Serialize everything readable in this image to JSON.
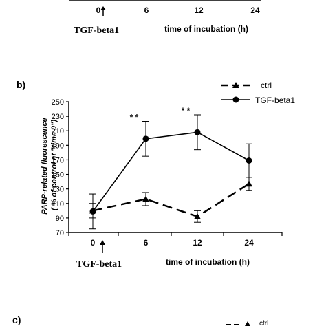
{
  "top_strip": {
    "ticks": [
      "0",
      "6",
      "12",
      "24"
    ],
    "treatment_label": "TGF-beta1",
    "xlabel": "time of incubation (h)"
  },
  "panel_b": {
    "label": "b)",
    "treatment_label": "TGF-beta1"
  },
  "panel_c": {
    "label": "c)",
    "legend_fragment": "ctrl"
  },
  "chart_data": {
    "type": "line",
    "title": "",
    "xlabel": "time of incubation (h)",
    "ylabel": "PARP-related fluorescence ( % of control at \"time 0\")",
    "categories": [
      "0",
      "6",
      "12",
      "24"
    ],
    "ylim": [
      70,
      250
    ],
    "yticks": [
      70,
      90,
      110,
      130,
      150,
      170,
      190,
      210,
      230,
      250
    ],
    "grid": false,
    "legend_position": "top-right",
    "series": [
      {
        "name": "ctrl",
        "marker": "triangle",
        "line_style": "dashed",
        "values": [
          100,
          116,
          92,
          137
        ],
        "errors": [
          10,
          9,
          8,
          9
        ]
      },
      {
        "name": "TGF-beta1",
        "marker": "circle",
        "line_style": "solid",
        "values": [
          99,
          199,
          208,
          169
        ],
        "errors": [
          24,
          24,
          24,
          23
        ]
      }
    ],
    "annotations": [
      {
        "category": "6",
        "text": "* *"
      },
      {
        "category": "12",
        "text": "* *"
      }
    ]
  }
}
